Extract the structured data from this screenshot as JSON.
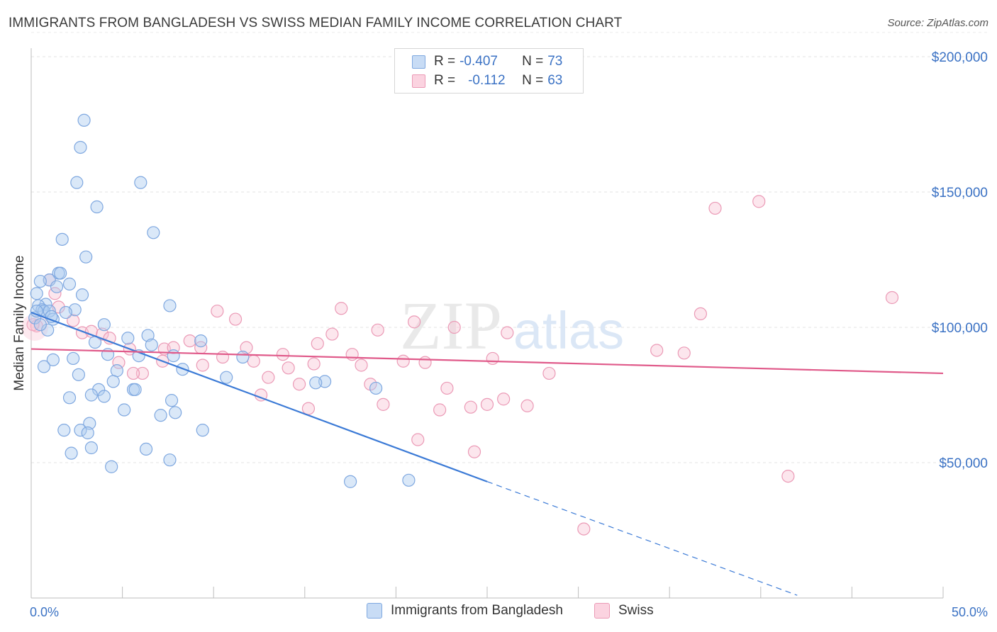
{
  "header": {
    "title": "IMMIGRANTS FROM BANGLADESH VS SWISS MEDIAN FAMILY INCOME CORRELATION CHART",
    "source": "Source: ZipAtlas.com"
  },
  "watermark": {
    "zip": "ZIP",
    "atlas": "atlas"
  },
  "legend": {
    "rows": [
      {
        "r_label": "R = ",
        "r_value": "-0.407",
        "n_label": "N = ",
        "n_value": "73",
        "color": "#aecbf0"
      },
      {
        "r_label": "R = ",
        "r_value": "-0.112",
        "n_label": "N = ",
        "n_value": "63",
        "color": "#f8c0d2"
      }
    ]
  },
  "bottom_legend": {
    "items": [
      {
        "label": "Immigrants from Bangladesh",
        "color": "#aecbf0"
      },
      {
        "label": "Swiss",
        "color": "#f8c0d2"
      }
    ]
  },
  "chart_data": {
    "type": "scatter",
    "title": "IMMIGRANTS FROM BANGLADESH VS SWISS MEDIAN FAMILY INCOME CORRELATION CHART",
    "xlabel": "",
    "ylabel": "Median Family Income",
    "xlim": [
      0,
      50
    ],
    "ylim": [
      0,
      210000
    ],
    "x_tick_labels": [
      "0.0%",
      "50.0%"
    ],
    "y_ticks": [
      50000,
      100000,
      150000,
      200000
    ],
    "y_tick_labels": [
      "$50,000",
      "$100,000",
      "$150,000",
      "$200,000"
    ],
    "grid": true,
    "legend_position": "top-center",
    "series": [
      {
        "name": "Immigrants from Bangladesh",
        "color": "#3b7ad6",
        "fill": "#aecbf0",
        "trend": {
          "x_start": 0,
          "y_start": 105500,
          "x_solid_end": 25,
          "y_solid_end": 43000,
          "x_dash_end": 42,
          "y_dash_end": 1000
        },
        "points": [
          [
            2.9,
            176500
          ],
          [
            2.7,
            166500
          ],
          [
            6.0,
            153500
          ],
          [
            2.5,
            153500
          ],
          [
            3.6,
            144500
          ],
          [
            6.7,
            135000
          ],
          [
            1.7,
            132500
          ],
          [
            3.0,
            126000
          ],
          [
            1.5,
            120000
          ],
          [
            1.6,
            120000
          ],
          [
            1.0,
            117500
          ],
          [
            0.5,
            117000
          ],
          [
            1.4,
            115000
          ],
          [
            2.1,
            116000
          ],
          [
            2.8,
            112000
          ],
          [
            0.3,
            112500
          ],
          [
            7.6,
            108000
          ],
          [
            0.8,
            108500
          ],
          [
            0.4,
            108000
          ],
          [
            0.6,
            106500
          ],
          [
            0.7,
            106000
          ],
          [
            1.0,
            106000
          ],
          [
            2.4,
            106500
          ],
          [
            1.9,
            105500
          ],
          [
            0.2,
            103500
          ],
          [
            1.2,
            103000
          ],
          [
            4.0,
            101000
          ],
          [
            0.9,
            99000
          ],
          [
            6.4,
            97000
          ],
          [
            5.3,
            96000
          ],
          [
            9.3,
            95000
          ],
          [
            3.5,
            94500
          ],
          [
            6.6,
            93500
          ],
          [
            4.2,
            90000
          ],
          [
            5.9,
            89500
          ],
          [
            7.8,
            89500
          ],
          [
            11.6,
            89000
          ],
          [
            1.2,
            88000
          ],
          [
            2.3,
            88500
          ],
          [
            0.7,
            85500
          ],
          [
            8.3,
            84500
          ],
          [
            4.7,
            84000
          ],
          [
            2.6,
            82500
          ],
          [
            10.7,
            81500
          ],
          [
            4.5,
            80000
          ],
          [
            16.1,
            80000
          ],
          [
            15.6,
            79500
          ],
          [
            3.7,
            77000
          ],
          [
            18.9,
            77500
          ],
          [
            5.6,
            77000
          ],
          [
            5.7,
            77000
          ],
          [
            3.3,
            75000
          ],
          [
            4.0,
            74500
          ],
          [
            2.1,
            74000
          ],
          [
            7.7,
            73000
          ],
          [
            5.1,
            69500
          ],
          [
            7.9,
            68500
          ],
          [
            7.1,
            67500
          ],
          [
            3.2,
            64500
          ],
          [
            1.8,
            62000
          ],
          [
            2.7,
            62000
          ],
          [
            3.1,
            61000
          ],
          [
            9.4,
            62000
          ],
          [
            3.3,
            55500
          ],
          [
            6.3,
            55000
          ],
          [
            2.2,
            53500
          ],
          [
            7.6,
            51000
          ],
          [
            4.4,
            48500
          ],
          [
            17.5,
            43000
          ],
          [
            20.7,
            43500
          ],
          [
            0.5,
            101000
          ],
          [
            1.1,
            104000
          ],
          [
            0.3,
            106000
          ]
        ]
      },
      {
        "name": "Swiss",
        "color": "#e05a8a",
        "fill": "#f8c0d2",
        "trend": {
          "x_start": 0,
          "y_start": 92000,
          "x_solid_end": 50,
          "y_solid_end": 83000
        },
        "points": [
          [
            39.9,
            146500
          ],
          [
            37.5,
            144000
          ],
          [
            1.0,
            117500
          ],
          [
            1.3,
            112500
          ],
          [
            47.2,
            111000
          ],
          [
            17.0,
            107000
          ],
          [
            1.5,
            107500
          ],
          [
            36.7,
            105000
          ],
          [
            10.2,
            106000
          ],
          [
            11.2,
            103000
          ],
          [
            2.3,
            102500
          ],
          [
            21.0,
            102000
          ],
          [
            0.3,
            100500
          ],
          [
            23.2,
            100000
          ],
          [
            19.0,
            99000
          ],
          [
            16.5,
            97500
          ],
          [
            26.1,
            98000
          ],
          [
            2.8,
            98000
          ],
          [
            3.3,
            98500
          ],
          [
            3.9,
            97500
          ],
          [
            4.3,
            96000
          ],
          [
            8.7,
            95000
          ],
          [
            15.7,
            94000
          ],
          [
            9.3,
            92500
          ],
          [
            11.8,
            92500
          ],
          [
            5.4,
            92000
          ],
          [
            7.3,
            92000
          ],
          [
            7.8,
            92500
          ],
          [
            35.8,
            90500
          ],
          [
            34.3,
            91500
          ],
          [
            13.8,
            90000
          ],
          [
            17.6,
            90000
          ],
          [
            10.5,
            89000
          ],
          [
            25.3,
            88500
          ],
          [
            12.2,
            87500
          ],
          [
            20.4,
            87500
          ],
          [
            21.6,
            87000
          ],
          [
            4.8,
            87000
          ],
          [
            7.2,
            87500
          ],
          [
            9.4,
            86000
          ],
          [
            15.5,
            86500
          ],
          [
            18.1,
            86000
          ],
          [
            14.1,
            85000
          ],
          [
            28.4,
            83000
          ],
          [
            6.1,
            83000
          ],
          [
            5.6,
            83000
          ],
          [
            13.0,
            81500
          ],
          [
            14.7,
            79000
          ],
          [
            18.6,
            79000
          ],
          [
            22.8,
            77500
          ],
          [
            12.6,
            75000
          ],
          [
            25.9,
            73500
          ],
          [
            19.3,
            71500
          ],
          [
            25.0,
            71500
          ],
          [
            27.2,
            71000
          ],
          [
            24.1,
            70500
          ],
          [
            15.2,
            70000
          ],
          [
            22.4,
            69500
          ],
          [
            21.2,
            58500
          ],
          [
            24.3,
            54000
          ],
          [
            41.5,
            45000
          ],
          [
            30.3,
            25500
          ],
          [
            0.1,
            101000
          ]
        ]
      }
    ]
  }
}
